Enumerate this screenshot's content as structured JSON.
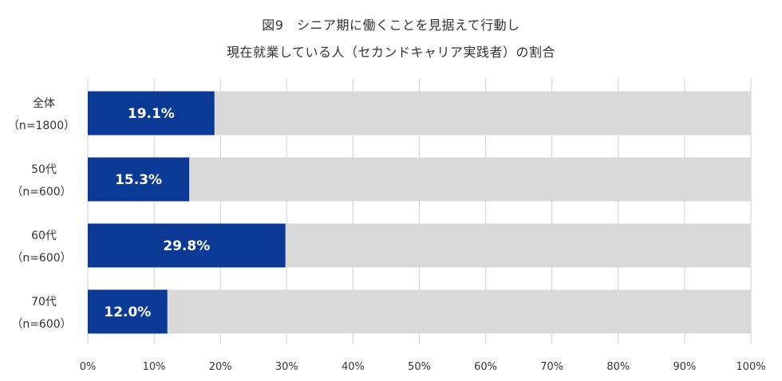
{
  "chart_data": {
    "type": "bar",
    "orientation": "horizontal",
    "stacked": true,
    "title_lines": [
      "図9　シニア期に働くことを見据えて行動し",
      "現在就業している人（セカンドキャリア実践者）の割合"
    ],
    "categories": [
      {
        "name": "全体",
        "sample": "（n=1800）"
      },
      {
        "name": "50代",
        "sample": "（n=600）"
      },
      {
        "name": "60代",
        "sample": "（n=600）"
      },
      {
        "name": "70代",
        "sample": "（n=600）"
      }
    ],
    "values": [
      19.1,
      15.3,
      29.8,
      12.0
    ],
    "value_labels": [
      "19.1%",
      "15.3%",
      "29.8%",
      "12.0%"
    ],
    "xlim": [
      0,
      100
    ],
    "xticks": [
      0,
      10,
      20,
      30,
      40,
      50,
      60,
      70,
      80,
      90,
      100
    ],
    "xtick_labels": [
      "0%",
      "10%",
      "20%",
      "30%",
      "40%",
      "50%",
      "60%",
      "70%",
      "80%",
      "90%",
      "100%"
    ],
    "grid": true,
    "colors": {
      "bar": "#0a3a96",
      "remainder": "#d9d9d9",
      "grid": "#d0d0d0"
    }
  }
}
